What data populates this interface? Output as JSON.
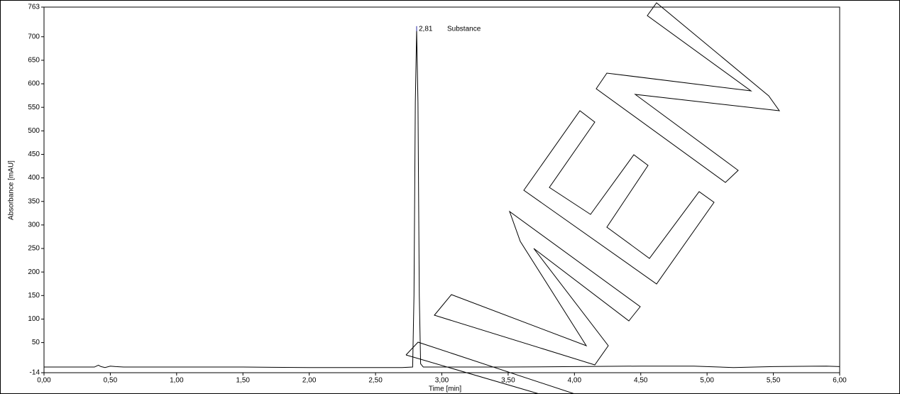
{
  "chart_data": {
    "type": "line",
    "x_label": "Time [min]",
    "y_label": "Absorbance [mAU]",
    "peak_annotation": {
      "time": "2,81",
      "name": "Substance",
      "x": 2.81,
      "y": 718
    },
    "xlim": [
      0,
      6
    ],
    "xticks": [
      {
        "value": 0,
        "label": "0,00"
      },
      {
        "value": 0.5,
        "label": "0,50"
      },
      {
        "value": 1,
        "label": "1,00"
      },
      {
        "value": 1.5,
        "label": "1,50"
      },
      {
        "value": 2,
        "label": "2,00"
      },
      {
        "value": 2.5,
        "label": "2,50"
      },
      {
        "value": 3,
        "label": "3,00"
      },
      {
        "value": 3.5,
        "label": "3,50"
      },
      {
        "value": 4,
        "label": "4,00"
      },
      {
        "value": 4.5,
        "label": "4,50"
      },
      {
        "value": 5,
        "label": "5,00"
      },
      {
        "value": 5.5,
        "label": "5,50"
      },
      {
        "value": 6,
        "label": "6,00"
      }
    ],
    "ylim": [
      -14,
      763
    ],
    "yticks": [
      -14,
      50,
      100,
      150,
      200,
      250,
      300,
      350,
      400,
      450,
      500,
      550,
      600,
      650,
      700,
      763
    ],
    "series": [
      {
        "color": "#000000",
        "x": [
          0,
          0.38,
          0.41,
          0.43,
          0.46,
          0.5,
          0.54,
          0.6,
          1.0,
          1.5,
          2.0,
          2.5,
          2.7,
          2.78,
          2.79,
          2.8,
          2.81,
          2.82,
          2.83,
          2.84,
          2.86,
          3.0,
          3.5,
          4.0,
          4.5,
          4.9,
          5.2,
          5.5,
          5.9,
          6.0
        ],
        "values": [
          -2,
          -2,
          2,
          -1,
          -3,
          0,
          -1,
          -2,
          -2,
          -2,
          -3,
          -3,
          -3,
          -2,
          150,
          560,
          715,
          560,
          150,
          5,
          -2,
          -2,
          -2,
          -1,
          0,
          0,
          -3,
          -1,
          0,
          -1
        ]
      }
    ]
  }
}
